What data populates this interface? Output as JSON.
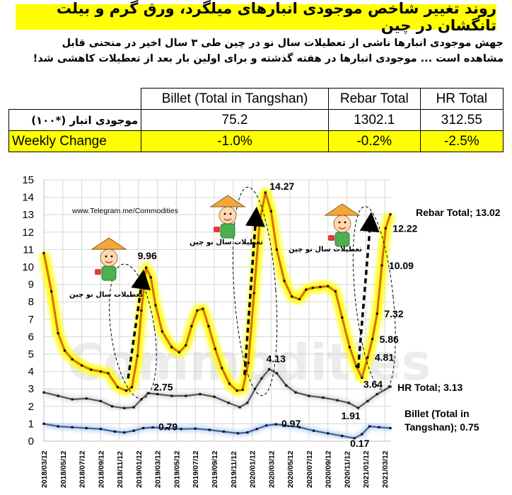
{
  "header": {
    "title": "روند تغییر شاخص موجودی انبارهای میلگرد، ورق گرم و بیلت تانگشان در چین",
    "intro_line1": "جهش موجودی انبارها ناشی از تعطیلات سال نو در چین طی ۳ سال اخیر در منحنی قابل",
    "intro_line2": "مشاهده است ... موجودی انبارها در هفته گذشته و برای اولین بار بعد از تعطیلات کاهشی شد!"
  },
  "summary_table": {
    "columns": [
      "Billet (Total in Tangshan)",
      "Rebar Total",
      "HR Total"
    ],
    "inventory_label": "موجودی انبار (*۱۰۰)",
    "inventory_values": [
      "75.2",
      "1302.1",
      "312.55"
    ],
    "change_label": "Weekly Change",
    "change_values": [
      "-1.0%",
      "-0.2%",
      "-2.5%"
    ]
  },
  "chart_data": {
    "type": "line",
    "x_tick_labels": [
      "2018/03/12",
      "2018/05/12",
      "2018/07/12",
      "2018/09/12",
      "2018/11/12",
      "2019/01/12",
      "2019/03/12",
      "2019/05/12",
      "2019/07/12",
      "2019/09/12",
      "2019/11/12",
      "2020/01/12",
      "2020/03/12",
      "2020/05/12",
      "2020/07/12",
      "2020/09/12",
      "2020/11/12",
      "2021/01/12",
      "2021/03/12"
    ],
    "y_ticks": [
      0,
      1,
      2,
      3,
      4,
      5,
      6,
      7,
      8,
      9,
      10,
      11,
      12,
      13,
      14,
      15
    ],
    "ylim": [
      0,
      15
    ],
    "grid": true,
    "watermark": "Commodities",
    "source_url": "www.Telegram.me/Commodities",
    "holiday_label": "تعطیلات سال نو چین",
    "series": [
      {
        "name": "Rebar Total",
        "color": "#d96a1a",
        "glow": "#ffff00",
        "end_label": "Rebar Total; 13.02",
        "points": [
          [
            0,
            10.8
          ],
          [
            0.8,
            8.6
          ],
          [
            1.5,
            6.2
          ],
          [
            2.2,
            5.2
          ],
          [
            3,
            4.7
          ],
          [
            4,
            4.35
          ],
          [
            5,
            4.1
          ],
          [
            6,
            4.0
          ],
          [
            6.8,
            3.9
          ],
          [
            7.8,
            3.1
          ],
          [
            8.7,
            2.9
          ],
          [
            9.3,
            3.1
          ],
          [
            9.9,
            4.9
          ],
          [
            10.3,
            7.5
          ],
          [
            10.8,
            9.96
          ],
          [
            11.3,
            9.4
          ],
          [
            11.8,
            7.8
          ],
          [
            12.5,
            6.3
          ],
          [
            13.5,
            5.4
          ],
          [
            14.3,
            5.1
          ],
          [
            15,
            5.5
          ],
          [
            15.6,
            6.6
          ],
          [
            16.2,
            7.5
          ],
          [
            16.8,
            7.6
          ],
          [
            17.4,
            6.6
          ],
          [
            18.1,
            5.3
          ],
          [
            18.8,
            4.2
          ],
          [
            19.6,
            3.3
          ],
          [
            20.4,
            2.9
          ],
          [
            21.0,
            2.95
          ],
          [
            21.6,
            4.5
          ],
          [
            22.2,
            8.5
          ],
          [
            22.8,
            12.6
          ],
          [
            23.4,
            14.27
          ],
          [
            24,
            13.2
          ],
          [
            24.6,
            11.0
          ],
          [
            25.4,
            9.2
          ],
          [
            26.2,
            8.3
          ],
          [
            27,
            8.15
          ],
          [
            27.7,
            8.7
          ],
          [
            28.4,
            8.8
          ],
          [
            29.2,
            8.85
          ],
          [
            30,
            8.9
          ],
          [
            30.8,
            8.6
          ],
          [
            31.5,
            7.1
          ],
          [
            32.3,
            5.4
          ],
          [
            33,
            4.3
          ],
          [
            33.6,
            3.64
          ],
          [
            34.2,
            4.81
          ],
          [
            34.7,
            5.86
          ],
          [
            35.2,
            7.32
          ],
          [
            35.7,
            10.09
          ],
          [
            36.1,
            12.22
          ],
          [
            36.6,
            13.02
          ]
        ],
        "labels": [
          {
            "x": 10.8,
            "y": 9.96,
            "text": "9.96"
          },
          {
            "x": 23.4,
            "y": 14.27,
            "text": "14.27"
          },
          {
            "x": 36.1,
            "y": 12.22,
            "text": "12.22"
          },
          {
            "x": 35.7,
            "y": 10.09,
            "text": "10.09"
          },
          {
            "x": 35.2,
            "y": 7.32,
            "text": "7.32"
          },
          {
            "x": 34.7,
            "y": 5.86,
            "text": "5.86"
          },
          {
            "x": 34.2,
            "y": 4.81,
            "text": "4.81"
          },
          {
            "x": 33.6,
            "y": 3.64,
            "text": "3.64"
          }
        ]
      },
      {
        "name": "HR Total",
        "color": "#555555",
        "glow": "#d0d0d0",
        "end_label": "HR Total; 3.13",
        "points": [
          [
            0,
            2.8
          ],
          [
            1.5,
            2.6
          ],
          [
            3,
            2.4
          ],
          [
            4.5,
            2.45
          ],
          [
            6,
            2.3
          ],
          [
            7.2,
            2.0
          ],
          [
            8.5,
            1.9
          ],
          [
            9.5,
            1.95
          ],
          [
            10.3,
            2.4
          ],
          [
            11,
            2.75
          ],
          [
            12,
            2.7
          ],
          [
            13.5,
            2.6
          ],
          [
            15,
            2.6
          ],
          [
            16.5,
            2.7
          ],
          [
            18,
            2.55
          ],
          [
            19.5,
            2.2
          ],
          [
            20.7,
            1.95
          ],
          [
            21.5,
            2.2
          ],
          [
            22.3,
            3.0
          ],
          [
            23.0,
            3.6
          ],
          [
            23.8,
            4.13
          ],
          [
            24.6,
            3.9
          ],
          [
            25.6,
            3.2
          ],
          [
            26.6,
            2.8
          ],
          [
            28,
            2.6
          ],
          [
            29.5,
            2.5
          ],
          [
            31,
            2.35
          ],
          [
            32.2,
            2.2
          ],
          [
            33.2,
            1.91
          ],
          [
            34.2,
            2.3
          ],
          [
            35.2,
            2.7
          ],
          [
            36.6,
            3.13
          ]
        ],
        "labels": [
          {
            "x": 11,
            "y": 2.75,
            "text": "2.75"
          },
          {
            "x": 23.8,
            "y": 4.13,
            "text": "4.13"
          },
          {
            "x": 33.2,
            "y": 1.91,
            "text": "1.91"
          }
        ]
      },
      {
        "name": "Billet (Total in Tangshan)",
        "color": "#3a5fa0",
        "glow": "#a9c4ea",
        "end_label_line1": "Billet (Total in",
        "end_label_line2": "Tangshan); 0.75",
        "points": [
          [
            0,
            1.0
          ],
          [
            1.5,
            0.85
          ],
          [
            3,
            0.8
          ],
          [
            4.5,
            0.75
          ],
          [
            6,
            0.7
          ],
          [
            7.5,
            0.55
          ],
          [
            8.5,
            0.5
          ],
          [
            9.5,
            0.6
          ],
          [
            10.5,
            0.75
          ],
          [
            11.5,
            0.79
          ],
          [
            13,
            0.75
          ],
          [
            14.5,
            0.7
          ],
          [
            16,
            0.72
          ],
          [
            17.5,
            0.65
          ],
          [
            19,
            0.55
          ],
          [
            20.5,
            0.45
          ],
          [
            21.5,
            0.5
          ],
          [
            22.5,
            0.7
          ],
          [
            23.5,
            0.9
          ],
          [
            24.5,
            0.97
          ],
          [
            25.5,
            0.9
          ],
          [
            27,
            0.8
          ],
          [
            28.5,
            0.6
          ],
          [
            30,
            0.45
          ],
          [
            31.5,
            0.3
          ],
          [
            32.8,
            0.17
          ],
          [
            33.6,
            0.4
          ],
          [
            34.4,
            0.85
          ],
          [
            35.4,
            0.8
          ],
          [
            36.6,
            0.75
          ]
        ],
        "labels": [
          {
            "x": 11.5,
            "y": 0.79,
            "text": "0.79"
          },
          {
            "x": 24.5,
            "y": 0.97,
            "text": "0.97"
          },
          {
            "x": 32.8,
            "y": 0.17,
            "text": "0.17"
          }
        ]
      }
    ]
  }
}
